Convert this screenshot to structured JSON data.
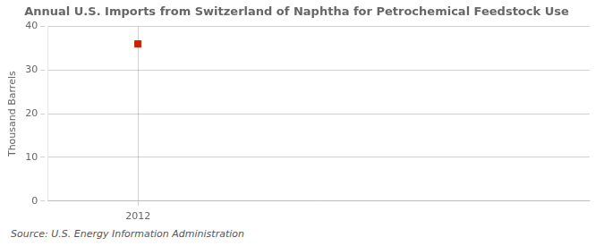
{
  "chart_data": {
    "type": "scatter",
    "title": "Annual U.S. Imports from Switzerland of Naphtha for Petrochemical Feedstock Use",
    "y_label": "Thousand Barrels",
    "annotations": [
      "Source: U.S. Energy Information Administration"
    ],
    "x": [
      2012
    ],
    "values": [
      36
    ],
    "color": "#cc2200",
    "marker": "square",
    "xlim": [
      2011.6,
      2014.0
    ],
    "xticks": [
      2012
    ],
    "ylim": [
      0,
      40
    ],
    "yticks": [
      0,
      10,
      20,
      30,
      40
    ],
    "grid": true
  }
}
